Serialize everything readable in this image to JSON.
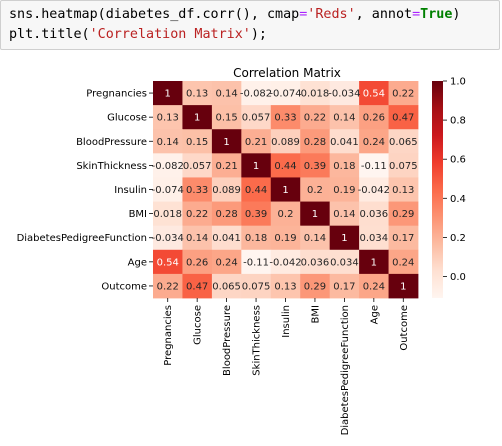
{
  "code": {
    "line1": {
      "prefix": "sns.heatmap(diabetes_df.corr(), cmap",
      "eq1": "=",
      "cmap_value": "'Reds'",
      "mid": ", annot",
      "eq2": "=",
      "annot_value": "True",
      "suffix": ")"
    },
    "line2": {
      "prefix": "plt.title(",
      "title_arg": "'Correlation Matrix'",
      "suffix": ");"
    }
  },
  "chart_data": {
    "type": "heatmap",
    "title": "Correlation Matrix",
    "colormap": "Reds",
    "categories": [
      "Pregnancies",
      "Glucose",
      "BloodPressure",
      "SkinThickness",
      "Insulin",
      "BMI",
      "DiabetesPedigreeFunction",
      "Age",
      "Outcome"
    ],
    "values": [
      [
        1,
        0.13,
        0.14,
        -0.082,
        -0.074,
        0.018,
        -0.034,
        0.54,
        0.22
      ],
      [
        0.13,
        1,
        0.15,
        0.057,
        0.33,
        0.22,
        0.14,
        0.26,
        0.47
      ],
      [
        0.14,
        0.15,
        1,
        0.21,
        0.089,
        0.28,
        0.041,
        0.24,
        0.065
      ],
      [
        -0.082,
        0.057,
        0.21,
        1,
        0.44,
        0.39,
        0.18,
        -0.11,
        0.075
      ],
      [
        -0.074,
        0.33,
        0.089,
        0.44,
        1,
        0.2,
        0.19,
        -0.042,
        0.13
      ],
      [
        0.018,
        0.22,
        0.28,
        0.39,
        0.2,
        1,
        0.14,
        0.036,
        0.29
      ],
      [
        -0.034,
        0.14,
        0.041,
        0.18,
        0.19,
        0.14,
        1,
        0.034,
        0.17
      ],
      [
        0.54,
        0.26,
        0.24,
        -0.11,
        -0.042,
        0.036,
        0.034,
        1,
        0.24
      ],
      [
        0.22,
        0.47,
        0.065,
        0.075,
        0.13,
        0.29,
        0.17,
        0.24,
        1
      ]
    ],
    "labels": [
      [
        "1",
        "0.13",
        "0.14",
        "-0.082",
        "-0.074",
        "0.018",
        "-0.034",
        "0.54",
        "0.22"
      ],
      [
        "0.13",
        "1",
        "0.15",
        "0.057",
        "0.33",
        "0.22",
        "0.14",
        "0.26",
        "0.47"
      ],
      [
        "0.14",
        "0.15",
        "1",
        "0.21",
        "0.089",
        "0.28",
        "0.041",
        "0.24",
        "0.065"
      ],
      [
        "-0.082",
        "0.057",
        "0.21",
        "1",
        "0.44",
        "0.39",
        "0.18",
        "-0.11",
        "0.075"
      ],
      [
        "-0.074",
        "0.33",
        "0.089",
        "0.44",
        "1",
        "0.2",
        "0.19",
        "-0.042",
        "0.13"
      ],
      [
        "0.018",
        "0.22",
        "0.28",
        "0.39",
        "0.2",
        "1",
        "0.14",
        "0.036",
        "0.29"
      ],
      [
        "-0.034",
        "0.14",
        "0.041",
        "0.18",
        "0.19",
        "0.14",
        "1",
        "0.034",
        "0.17"
      ],
      [
        "0.54",
        "0.26",
        "0.24",
        "-0.11",
        "-0.042",
        "0.036",
        "0.034",
        "1",
        "0.24"
      ],
      [
        "0.22",
        "0.47",
        "0.065",
        "0.075",
        "0.13",
        "0.29",
        "0.17",
        "0.24",
        "1"
      ]
    ],
    "colorbar": {
      "vmin": -0.11,
      "vmax": 1.0,
      "ticks": [
        1.0,
        0.8,
        0.6,
        0.4,
        0.2,
        0.0
      ],
      "tick_labels": [
        "1.0",
        "0.8",
        "0.6",
        "0.4",
        "0.2",
        "0.0"
      ]
    }
  }
}
